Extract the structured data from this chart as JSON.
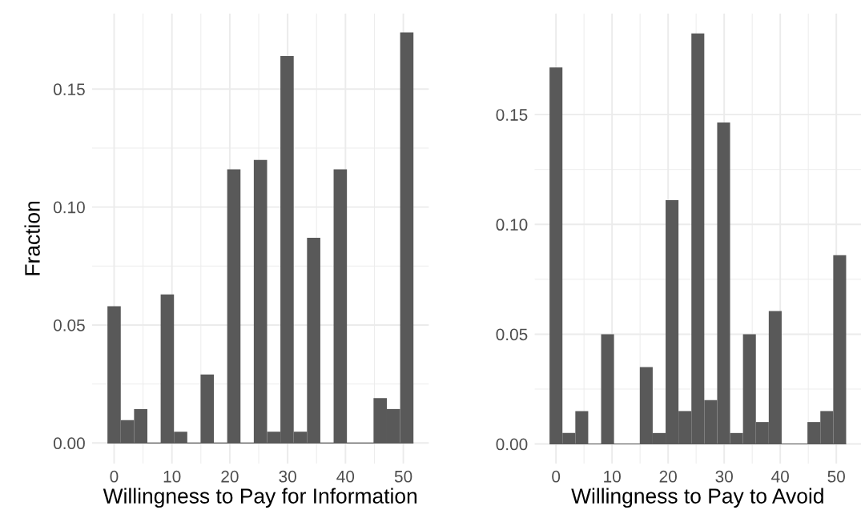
{
  "chart_data": [
    {
      "type": "histogram",
      "xlabel": "Willingness to Pay for Information",
      "ylabel": "Fraction",
      "color": "#595959",
      "grid": true,
      "bins": [
        -1.15,
        1.15,
        3.45,
        5.75,
        8.05,
        10.35,
        12.65,
        14.95,
        17.25,
        19.55,
        21.85,
        24.15,
        26.45,
        28.75,
        31.05,
        33.35,
        35.65,
        37.95,
        40.25,
        42.55,
        44.85,
        47.15,
        49.45,
        51.75
      ],
      "values": [
        0.058,
        0.0097,
        0.0144,
        0,
        0.063,
        0.0048,
        0,
        0.029,
        0,
        0.116,
        0,
        0.12,
        0.0048,
        0.164,
        0.0048,
        0.087,
        0,
        0.116,
        0,
        0,
        0.019,
        0.0144,
        0.174
      ],
      "xlim": [
        -3.8,
        54.4
      ],
      "xticks": [
        0,
        10,
        20,
        30,
        40,
        50
      ],
      "ylim": [
        -0.0087,
        0.182
      ],
      "yticks": [
        {
          "value": 0,
          "label": "0.00"
        },
        {
          "value": 0.05,
          "label": "0.05"
        },
        {
          "value": 0.1,
          "label": "0.10"
        },
        {
          "value": 0.15,
          "label": "0.15"
        }
      ]
    },
    {
      "type": "histogram",
      "xlabel": "Willingness to Pay to Avoid",
      "color": "#595959",
      "grid": true,
      "bins": [
        -1.15,
        1.15,
        3.45,
        5.75,
        8.05,
        10.35,
        12.65,
        14.95,
        17.25,
        19.55,
        21.85,
        24.15,
        26.45,
        28.75,
        31.05,
        33.35,
        35.65,
        37.95,
        40.25,
        42.55,
        44.85,
        47.15,
        49.45,
        51.75
      ],
      "values": [
        0.1715,
        0.005,
        0.015,
        0,
        0.05,
        0,
        0,
        0.035,
        0.005,
        0.111,
        0.015,
        0.187,
        0.02,
        0.1464,
        0.005,
        0.05,
        0.01,
        0.0605,
        0,
        0,
        0.01,
        0.015,
        0.086
      ],
      "xlim": [
        -3.8,
        54.4
      ],
      "xticks": [
        0,
        10,
        20,
        30,
        40,
        50
      ],
      "ylim": [
        -0.0089,
        0.196
      ],
      "yticks": [
        {
          "value": 0,
          "label": "0.00"
        },
        {
          "value": 0.05,
          "label": "0.05"
        },
        {
          "value": 0.1,
          "label": "0.10"
        },
        {
          "value": 0.15,
          "label": "0.15"
        }
      ]
    }
  ]
}
